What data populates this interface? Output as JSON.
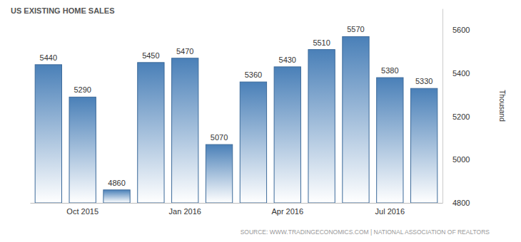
{
  "chart_data": {
    "type": "bar",
    "title": "US EXISTING HOME SALES",
    "y_label": "Thousand",
    "source": "SOURCE: WWW.TRADINGECONOMICS.COM | NATIONAL ASSOCIATION OF REALTORS",
    "categories": [
      null,
      "Oct 2015",
      null,
      null,
      "Jan 2016",
      null,
      null,
      "Apr 2016",
      null,
      null,
      "Jul 2016",
      null
    ],
    "values": [
      5440,
      5290,
      4860,
      5450,
      5470,
      5070,
      5360,
      5430,
      5510,
      5570,
      5380,
      5330
    ],
    "color": "#4a80b8",
    "ylim": [
      4800,
      5700
    ],
    "yticks": [
      4800,
      5000,
      5200,
      5400,
      5600
    ],
    "grid": false,
    "data_labels": true
  }
}
